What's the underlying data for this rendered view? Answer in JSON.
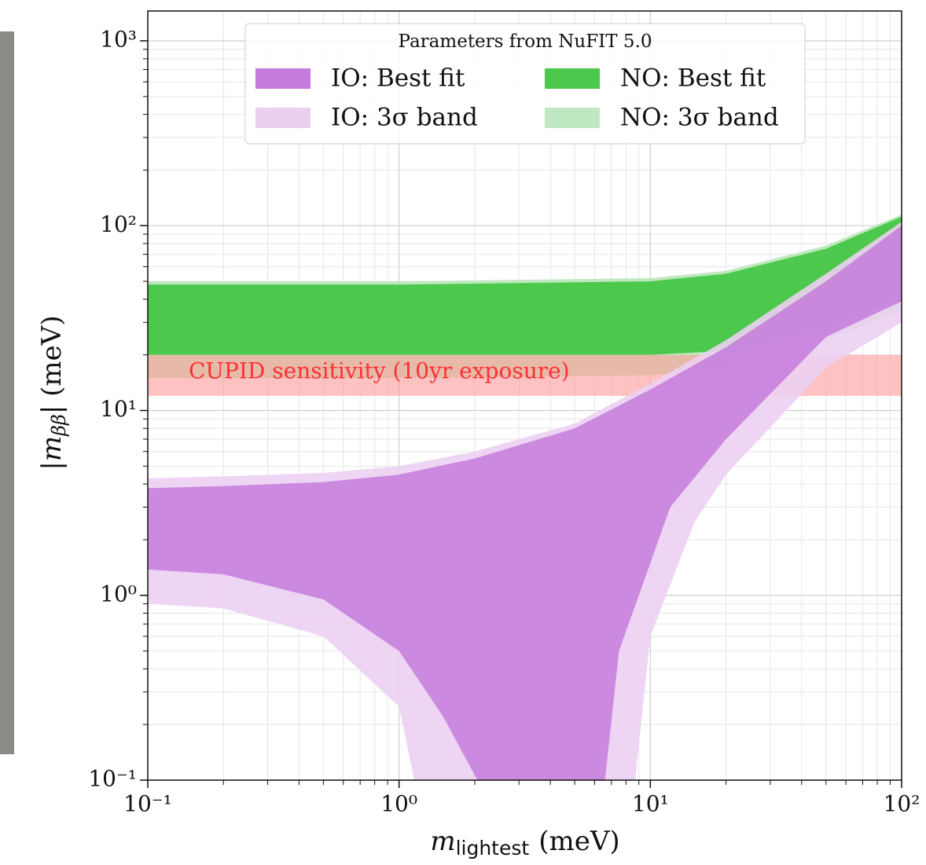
{
  "chart_data": {
    "type": "band",
    "xlabel": {
      "symbol": "m",
      "subscript": "lightest",
      "unit": "(meV)"
    },
    "ylabel": {
      "open": "|",
      "symbol": "m",
      "subscript": "ββ",
      "close": "| (meV)"
    },
    "xscale": "log",
    "yscale": "log",
    "grid": true,
    "xlim": [
      0.1,
      100
    ],
    "ylim": [
      0.1,
      1000
    ],
    "xticks": [
      {
        "value": 0.1,
        "label": "10⁻¹"
      },
      {
        "value": 1,
        "label": "10⁰"
      },
      {
        "value": 10,
        "label": "10¹"
      },
      {
        "value": 100,
        "label": "10²"
      }
    ],
    "yticks": [
      {
        "value": 0.1,
        "label": "10⁻¹"
      },
      {
        "value": 1,
        "label": "10⁰"
      },
      {
        "value": 10,
        "label": "10¹"
      },
      {
        "value": 100,
        "label": "10²"
      },
      {
        "value": 1000,
        "label": "10³"
      }
    ],
    "legend": {
      "title": "Parameters from NuFIT 5.0",
      "position": "top"
    },
    "series": [
      {
        "name": "IO: Best fit",
        "color": "#c47bda",
        "upper": {
          "x": [
            0.1,
            0.2,
            0.5,
            1,
            2,
            5,
            10,
            20,
            50,
            100
          ],
          "values": [
            3.8,
            3.9,
            4.1,
            4.5,
            5.5,
            8,
            13,
            22,
            50,
            100
          ]
        },
        "lower": {
          "x": [
            0.1,
            0.2,
            0.5,
            1,
            1.5,
            2.05,
            6.6,
            7.5,
            9,
            12,
            20,
            50,
            100
          ],
          "values": [
            1.38,
            1.3,
            0.95,
            0.5,
            0.22,
            0.1,
            0.1,
            0.5,
            1,
            3,
            7,
            25,
            39
          ]
        }
      },
      {
        "name": "IO: 3σ band",
        "color": "#ecd0f2",
        "upper": {
          "x": [
            0.1,
            0.2,
            0.5,
            1,
            2,
            5,
            10,
            20,
            50,
            100
          ],
          "values": [
            4.3,
            4.4,
            4.6,
            5,
            6,
            8.5,
            14,
            24,
            55,
            105
          ]
        },
        "lower": {
          "x": [
            0.1,
            0.2,
            0.5,
            1,
            1.15,
            8.7,
            10,
            15,
            20,
            50,
            100
          ],
          "values": [
            0.9,
            0.85,
            0.6,
            0.25,
            0.1,
            0.1,
            0.6,
            2.5,
            4.5,
            17,
            30
          ]
        }
      },
      {
        "name": "NO: Best fit",
        "color": "#4cc94c",
        "upper": {
          "x": [
            0.1,
            1,
            10,
            20,
            50,
            100
          ],
          "values": [
            48,
            48,
            50,
            55,
            75,
            112
          ]
        },
        "lower": {
          "x": [
            0.1,
            1,
            10,
            20,
            50,
            100
          ],
          "values": [
            20,
            20,
            20,
            21,
            28,
            40
          ]
        }
      },
      {
        "name": "NO: 3σ band",
        "color": "#c0e8c0",
        "upper": {
          "x": [
            0.1,
            1,
            10,
            20,
            50,
            100
          ],
          "values": [
            50,
            50,
            52,
            57,
            78,
            115
          ]
        },
        "lower": {
          "x": [
            0.1,
            1,
            10,
            20,
            50,
            100
          ],
          "values": [
            15,
            15,
            15.5,
            17,
            24,
            35
          ]
        }
      }
    ],
    "annotation": {
      "text": "CUPID sensitivity (10yr exposure)",
      "color": "#ff3030",
      "band_color": "#ff9a9a",
      "lower": 12,
      "upper": 20
    }
  }
}
